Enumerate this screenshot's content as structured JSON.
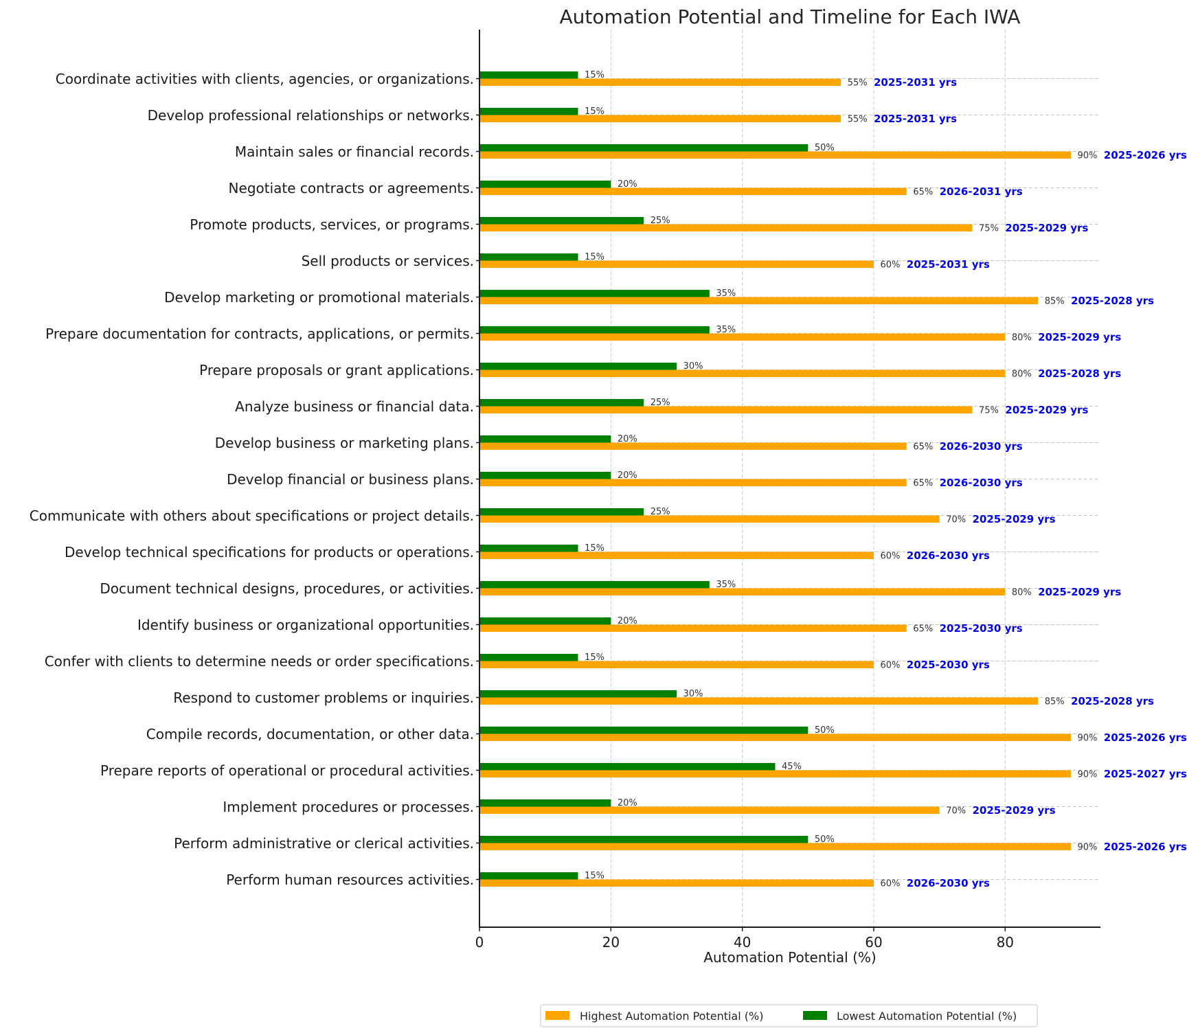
{
  "chart_data": {
    "type": "bar",
    "orientation": "horizontal",
    "title": "Automation Potential and Timeline for Each IWA",
    "xlabel": "Automation Potential (%)",
    "ylabel": "",
    "xlim": [
      0,
      94.5
    ],
    "xticks": [
      0,
      20,
      40,
      60,
      80
    ],
    "grid": true,
    "legend_placement": "bottom-center",
    "categories": [
      "Coordinate activities with clients, agencies, or organizations.",
      "Develop professional relationships or networks.",
      "Maintain sales or financial records.",
      "Negotiate contracts or agreements.",
      "Promote products, services, or programs.",
      "Sell products or services.",
      "Develop marketing or promotional materials.",
      "Prepare documentation for contracts, applications, or permits.",
      "Prepare proposals or grant applications.",
      "Analyze business or financial data.",
      "Develop business or marketing plans.",
      "Develop financial or business plans.",
      "Communicate with others about specifications or project details.",
      "Develop technical specifications for products or operations.",
      "Document technical designs, procedures, or activities.",
      "Identify business or organizational opportunities.",
      "Confer with clients to determine needs or order specifications.",
      "Respond to customer problems or inquiries.",
      "Compile records, documentation, or other data.",
      "Prepare reports of operational or procedural activities.",
      "Implement procedures or processes.",
      "Perform administrative or clerical activities.",
      "Perform human resources activities."
    ],
    "series": [
      {
        "name": "Highest Automation Potential (%)",
        "color": "#ffa500",
        "values": [
          55,
          55,
          90,
          65,
          75,
          60,
          85,
          80,
          80,
          75,
          65,
          65,
          70,
          60,
          80,
          65,
          60,
          85,
          90,
          90,
          70,
          90,
          60
        ]
      },
      {
        "name": "Lowest Automation Potential (%)",
        "color": "#008000",
        "values": [
          15,
          15,
          50,
          20,
          25,
          15,
          35,
          35,
          30,
          25,
          20,
          20,
          25,
          15,
          35,
          20,
          15,
          30,
          50,
          45,
          20,
          50,
          15
        ]
      }
    ],
    "timelines": [
      "2025-2031 yrs",
      "2025-2031 yrs",
      "2025-2026 yrs",
      "2026-2031 yrs",
      "2025-2029 yrs",
      "2025-2031 yrs",
      "2025-2028 yrs",
      "2025-2029 yrs",
      "2025-2028 yrs",
      "2025-2029 yrs",
      "2026-2030 yrs",
      "2026-2030 yrs",
      "2025-2029 yrs",
      "2026-2030 yrs",
      "2025-2029 yrs",
      "2025-2030 yrs",
      "2025-2030 yrs",
      "2025-2028 yrs",
      "2025-2026 yrs",
      "2025-2027 yrs",
      "2025-2029 yrs",
      "2025-2026 yrs",
      "2026-2030 yrs"
    ],
    "timeline_color": "#0000ee",
    "value_label_suffix": "%"
  }
}
